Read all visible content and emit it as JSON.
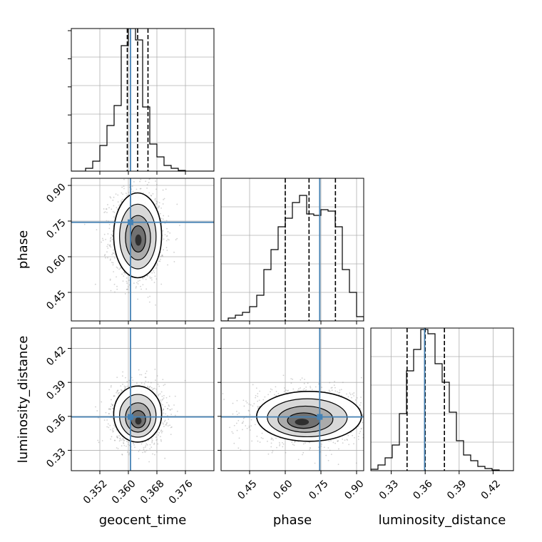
{
  "chart_data": {
    "type": "corner",
    "parameters": [
      "geocent_time",
      "phase",
      "luminosity_distance"
    ],
    "truth_color": "#4682b4",
    "grid": true,
    "panels": [
      {
        "id": "hist-geocent_time",
        "kind": "histogram",
        "row": 0,
        "col": 0,
        "xparam": "geocent_time",
        "xlim": [
          0.344,
          0.384
        ],
        "ylim": [
          0,
          1.0
        ],
        "bin_edges": [
          0.344,
          0.346,
          0.348,
          0.35,
          0.352,
          0.354,
          0.356,
          0.358,
          0.36,
          0.362,
          0.364,
          0.366,
          0.368,
          0.37,
          0.372,
          0.374,
          0.376,
          0.378,
          0.38,
          0.382,
          0.384
        ],
        "counts": [
          0,
          0,
          0.02,
          0.07,
          0.18,
          0.32,
          0.46,
          0.88,
          1.0,
          0.92,
          0.45,
          0.19,
          0.1,
          0.04,
          0.02,
          0.005,
          0,
          0,
          0,
          0
        ],
        "quantiles": [
          0.3597,
          0.3626,
          0.3655
        ],
        "truth": 0.3606
      },
      {
        "id": "hist-phase",
        "kind": "histogram",
        "row": 1,
        "col": 1,
        "xparam": "phase",
        "xlim": [
          0.33,
          0.93
        ],
        "ylim": [
          0,
          1.0
        ],
        "bin_edges": [
          0.33,
          0.36,
          0.39,
          0.42,
          0.45,
          0.48,
          0.51,
          0.54,
          0.57,
          0.6,
          0.63,
          0.66,
          0.69,
          0.72,
          0.75,
          0.78,
          0.81,
          0.84,
          0.87,
          0.9,
          0.93
        ],
        "counts": [
          0,
          0.02,
          0.04,
          0.06,
          0.1,
          0.18,
          0.36,
          0.5,
          0.66,
          0.72,
          0.83,
          0.88,
          0.75,
          0.74,
          0.78,
          0.77,
          0.66,
          0.36,
          0.2,
          0.03
        ],
        "quantiles": [
          0.6,
          0.7,
          0.811
        ],
        "truth": 0.745
      },
      {
        "id": "hist-luminosity_distance",
        "kind": "histogram",
        "row": 2,
        "col": 2,
        "xparam": "luminosity_distance",
        "xlim": [
          0.312,
          0.438
        ],
        "ylim": [
          0,
          1.0
        ],
        "bin_edges": [
          0.312,
          0.3183,
          0.3246,
          0.3309,
          0.3372,
          0.3435,
          0.3498,
          0.3561,
          0.3624,
          0.3687,
          0.375,
          0.3813,
          0.3876,
          0.3939,
          0.4002,
          0.4065,
          0.4128,
          0.4191,
          0.4254,
          0.4317,
          0.438
        ],
        "counts": [
          0.01,
          0.04,
          0.09,
          0.18,
          0.4,
          0.7,
          0.85,
          0.99,
          0.96,
          0.75,
          0.62,
          0.41,
          0.21,
          0.11,
          0.07,
          0.03,
          0.015,
          0.005,
          0,
          0
        ],
        "quantiles": [
          0.344,
          0.36,
          0.377
        ],
        "truth": 0.3595
      },
      {
        "id": "contour-phase-vs-geocent_time",
        "kind": "contour",
        "row": 1,
        "col": 0,
        "xparam": "geocent_time",
        "yparam": "phase",
        "xlim": [
          0.344,
          0.384
        ],
        "ylim": [
          0.33,
          0.93
        ],
        "center": [
          0.3626,
          0.69
        ],
        "spread": [
          0.0032,
          0.085
        ],
        "truth": [
          0.3606,
          0.745
        ],
        "density_peak": [
          0.3628,
          0.67
        ]
      },
      {
        "id": "contour-luminosity_distance-vs-geocent_time",
        "kind": "contour",
        "row": 2,
        "col": 0,
        "xparam": "geocent_time",
        "yparam": "luminosity_distance",
        "xlim": [
          0.344,
          0.384
        ],
        "ylim": [
          0.312,
          0.438
        ],
        "center": [
          0.3626,
          0.362
        ],
        "spread": [
          0.0032,
          0.0118
        ],
        "truth": [
          0.3606,
          0.3595
        ],
        "density_peak": [
          0.3628,
          0.356
        ]
      },
      {
        "id": "contour-luminosity_distance-vs-phase",
        "kind": "contour",
        "row": 2,
        "col": 1,
        "xparam": "phase",
        "yparam": "luminosity_distance",
        "xlim": [
          0.33,
          0.93
        ],
        "ylim": [
          0.312,
          0.438
        ],
        "center": [
          0.7,
          0.36
        ],
        "spread": [
          0.105,
          0.0105
        ],
        "truth": [
          0.745,
          0.3595
        ],
        "density_peak": [
          0.67,
          0.355
        ]
      }
    ],
    "ticks": {
      "geocent_time": {
        "values": [
          0.352,
          0.36,
          0.368,
          0.376
        ],
        "labels": [
          "0.352",
          "0.360",
          "0.368",
          "0.376"
        ]
      },
      "phase": {
        "values": [
          0.45,
          0.6,
          0.75,
          0.9
        ],
        "labels": [
          "0.45",
          "0.60",
          "0.75",
          "0.90"
        ]
      },
      "luminosity_distance": {
        "values": [
          0.33,
          0.36,
          0.39,
          0.42
        ],
        "labels": [
          "0.33",
          "0.36",
          "0.39",
          "0.42"
        ]
      }
    },
    "xlabels": [
      "geocent_time",
      "phase",
      "luminosity_distance"
    ],
    "ylabels": [
      "",
      "phase",
      "luminosity_distance"
    ]
  }
}
